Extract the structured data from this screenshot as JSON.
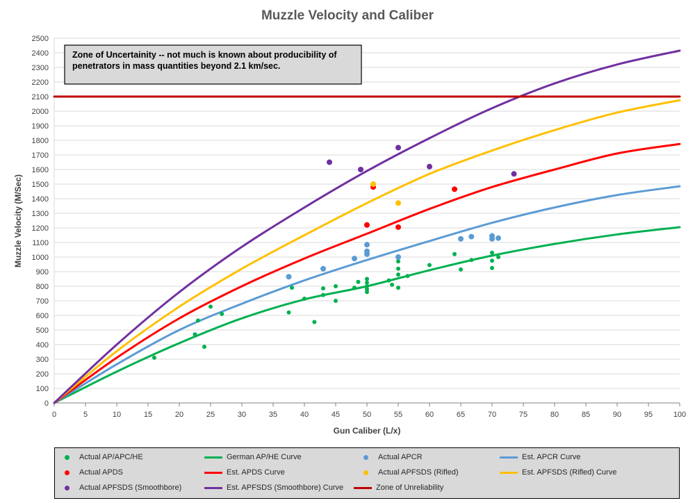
{
  "chart_data": {
    "type": "scatter",
    "title": "Muzzle Velocity and Caliber",
    "xlabel": "Gun Caliber (L/x)",
    "ylabel": "Muzzle Velocity (M/Sec)",
    "xlim": [
      0,
      100
    ],
    "ylim": [
      0,
      2500
    ],
    "x_ticks": [
      "0",
      "5",
      "10",
      "15",
      "20",
      "25",
      "30",
      "35",
      "40",
      "45",
      "50",
      "55",
      "60",
      "65",
      "70",
      "75",
      "80",
      "85",
      "90",
      "95",
      "100"
    ],
    "y_ticks": [
      "0",
      "100",
      "200",
      "300",
      "400",
      "500",
      "600",
      "700",
      "800",
      "900",
      "1000",
      "1100",
      "1200",
      "1300",
      "1400",
      "1500",
      "1600",
      "1700",
      "1800",
      "1900",
      "2000",
      "2100",
      "2200",
      "2300",
      "2400",
      "2500"
    ],
    "grid": "horizontal",
    "annotation": "Zone of Uncertainity -- not much is known about producibility of penetrators in mass quantities beyond 2.1 km/sec.",
    "legend_position": "bottom",
    "scatter_series": [
      {
        "name": "Actual AP/APC/HE",
        "color": "#00b050",
        "points": [
          [
            16,
            310
          ],
          [
            22.5,
            470
          ],
          [
            23,
            565
          ],
          [
            24,
            385
          ],
          [
            25,
            660
          ],
          [
            26.8,
            610
          ],
          [
            37.5,
            620
          ],
          [
            38,
            790
          ],
          [
            40,
            715
          ],
          [
            41.6,
            555
          ],
          [
            43,
            785
          ],
          [
            43,
            740
          ],
          [
            45,
            800
          ],
          [
            45,
            700
          ],
          [
            48,
            790
          ],
          [
            48.6,
            830
          ],
          [
            50,
            800
          ],
          [
            50,
            825
          ],
          [
            50,
            780
          ],
          [
            50,
            760
          ],
          [
            50,
            850
          ],
          [
            53.5,
            840
          ],
          [
            54,
            810
          ],
          [
            55,
            790
          ],
          [
            55,
            880
          ],
          [
            55,
            920
          ],
          [
            55,
            970
          ],
          [
            56.5,
            870
          ],
          [
            60,
            945
          ],
          [
            64,
            1020
          ],
          [
            65,
            915
          ],
          [
            66.7,
            980
          ],
          [
            70,
            1030
          ],
          [
            70,
            975
          ],
          [
            70,
            925
          ],
          [
            71,
            1000
          ]
        ]
      },
      {
        "name": "Actual APCR",
        "color": "#5b9bd5",
        "points": [
          [
            37.5,
            865
          ],
          [
            43,
            920
          ],
          [
            48,
            990
          ],
          [
            50,
            1085
          ],
          [
            50,
            1040
          ],
          [
            50,
            1020
          ],
          [
            55,
            1000
          ],
          [
            65,
            1125
          ],
          [
            66.7,
            1140
          ],
          [
            70,
            1145
          ],
          [
            70,
            1125
          ],
          [
            71,
            1130
          ]
        ]
      },
      {
        "name": "Actual APDS",
        "color": "#ff0000",
        "points": [
          [
            50,
            1220
          ],
          [
            51,
            1480
          ],
          [
            55,
            1205
          ],
          [
            64,
            1465
          ]
        ]
      },
      {
        "name": "Actual APFSDS (Rifled)",
        "color": "#ffc000",
        "points": [
          [
            51,
            1500
          ],
          [
            55,
            1370
          ]
        ]
      },
      {
        "name": "Actual APFSDS (Smoothbore)",
        "color": "#7030a0",
        "points": [
          [
            44,
            1650
          ],
          [
            49,
            1600
          ],
          [
            55,
            1750
          ],
          [
            60,
            1620
          ],
          [
            73.5,
            1570
          ]
        ]
      }
    ],
    "curve_series": [
      {
        "name": "German AP/HE Curve",
        "color": "#00b050",
        "values_at_x": {
          "0": 0,
          "10": 215,
          "20": 410,
          "30": 580,
          "40": 710,
          "50": 800,
          "60": 910,
          "70": 1010,
          "80": 1090,
          "90": 1155,
          "100": 1205
        }
      },
      {
        "name": "Est. APCR Curve",
        "color": "#5b9bd5",
        "values_at_x": {
          "0": 0,
          "10": 265,
          "20": 500,
          "30": 680,
          "40": 840,
          "50": 980,
          "60": 1110,
          "70": 1235,
          "80": 1340,
          "90": 1425,
          "100": 1485
        }
      },
      {
        "name": "Est. APDS Curve",
        "color": "#ff0000",
        "values_at_x": {
          "0": 0,
          "10": 310,
          "20": 580,
          "30": 800,
          "40": 990,
          "50": 1160,
          "60": 1330,
          "70": 1480,
          "80": 1600,
          "90": 1710,
          "100": 1775
        }
      },
      {
        "name": "Est. APFSDS (Rifled) Curve",
        "color": "#ffc000",
        "values_at_x": {
          "0": 0,
          "10": 355,
          "20": 660,
          "30": 920,
          "40": 1150,
          "50": 1370,
          "60": 1570,
          "70": 1730,
          "80": 1870,
          "90": 1990,
          "100": 2075
        }
      },
      {
        "name": "Est. APFSDS (Smoothbore) Curve",
        "color": "#7030a0",
        "values_at_x": {
          "0": 0,
          "10": 400,
          "20": 760,
          "30": 1070,
          "40": 1340,
          "50": 1590,
          "60": 1815,
          "70": 2020,
          "80": 2190,
          "90": 2320,
          "100": 2415
        }
      },
      {
        "name": "Zone of Unreliability",
        "color": "#c00000",
        "values_at_x": {
          "0": 2100,
          "100": 2100
        }
      }
    ]
  }
}
